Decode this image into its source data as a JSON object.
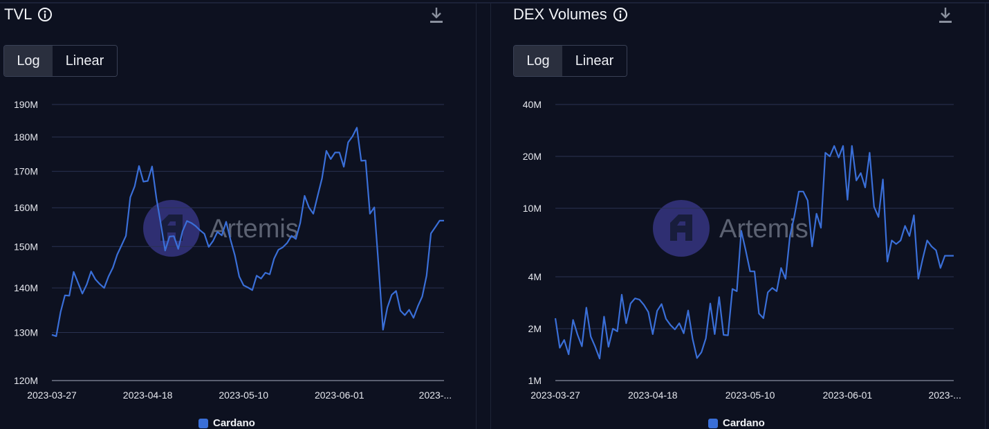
{
  "colors": {
    "background": "#0d1120",
    "series": "#3a6fd8",
    "grid": "#2a3252",
    "watermark": "#3b3a8e"
  },
  "panels": [
    {
      "title": "TVL",
      "info_icon": "info-icon",
      "download_icon": "download-icon",
      "scale_toggle": {
        "options": [
          "Log",
          "Linear"
        ],
        "selected": "Log"
      },
      "legend": {
        "label": "Cardano"
      },
      "watermark": "Artemis"
    },
    {
      "title": "DEX Volumes",
      "info_icon": "info-icon",
      "download_icon": "download-icon",
      "scale_toggle": {
        "options": [
          "Log",
          "Linear"
        ],
        "selected": "Log"
      },
      "legend": {
        "label": "Cardano"
      },
      "watermark": "Artemis"
    }
  ],
  "chart_data": [
    {
      "type": "line",
      "title": "TVL",
      "scale": "log",
      "x_tick_labels": [
        "2023-03-27",
        "2023-04-18",
        "2023-05-10",
        "2023-06-01",
        "2023-..."
      ],
      "x_tick_dates": [
        "2023-03-27",
        "2023-04-18",
        "2023-05-10",
        "2023-06-01",
        "2023-06-23"
      ],
      "x_range": [
        "2023-03-27",
        "2023-06-25"
      ],
      "y_ticks": [
        120000000,
        130000000,
        140000000,
        150000000,
        160000000,
        170000000,
        180000000,
        190000000
      ],
      "y_tick_labels": [
        "120M",
        "130M",
        "140M",
        "150M",
        "160M",
        "170M",
        "180M",
        "190M"
      ],
      "ylim": [
        120000000,
        190000000
      ],
      "grid": true,
      "legend": "bottom-center",
      "series": [
        {
          "name": "Cardano",
          "x": [
            "2023-03-27",
            "2023-03-28",
            "2023-03-29",
            "2023-03-30",
            "2023-03-31",
            "2023-04-01",
            "2023-04-02",
            "2023-04-03",
            "2023-04-04",
            "2023-04-05",
            "2023-04-06",
            "2023-04-07",
            "2023-04-08",
            "2023-04-09",
            "2023-04-10",
            "2023-04-11",
            "2023-04-12",
            "2023-04-13",
            "2023-04-14",
            "2023-04-15",
            "2023-04-16",
            "2023-04-17",
            "2023-04-18",
            "2023-04-19",
            "2023-04-20",
            "2023-04-21",
            "2023-04-22",
            "2023-04-23",
            "2023-04-24",
            "2023-04-25",
            "2023-04-26",
            "2023-04-27",
            "2023-04-28",
            "2023-04-29",
            "2023-04-30",
            "2023-05-01",
            "2023-05-02",
            "2023-05-03",
            "2023-05-04",
            "2023-05-05",
            "2023-05-06",
            "2023-05-07",
            "2023-05-08",
            "2023-05-09",
            "2023-05-10",
            "2023-05-11",
            "2023-05-12",
            "2023-05-13",
            "2023-05-14",
            "2023-05-15",
            "2023-05-16",
            "2023-05-17",
            "2023-05-18",
            "2023-05-19",
            "2023-05-20",
            "2023-05-21",
            "2023-05-22",
            "2023-05-23",
            "2023-05-24",
            "2023-05-25",
            "2023-05-26",
            "2023-05-27",
            "2023-05-28",
            "2023-05-29",
            "2023-05-30",
            "2023-05-31",
            "2023-06-01",
            "2023-06-02",
            "2023-06-03",
            "2023-06-04",
            "2023-06-05",
            "2023-06-06",
            "2023-06-07",
            "2023-06-08",
            "2023-06-09",
            "2023-06-10",
            "2023-06-11",
            "2023-06-12",
            "2023-06-13",
            "2023-06-14",
            "2023-06-15",
            "2023-06-16",
            "2023-06-17",
            "2023-06-18",
            "2023-06-19",
            "2023-06-20",
            "2023-06-21",
            "2023-06-22",
            "2023-06-23",
            "2023-06-24",
            "2023-06-25"
          ],
          "values": [
            129500000,
            129200000,
            134500000,
            138300000,
            138200000,
            143800000,
            141200000,
            138700000,
            140800000,
            143900000,
            142000000,
            140900000,
            140000000,
            142700000,
            144800000,
            148000000,
            150300000,
            152700000,
            162800000,
            165800000,
            171500000,
            167100000,
            167300000,
            171400000,
            162500000,
            155800000,
            149000000,
            152500000,
            152600000,
            149400000,
            153900000,
            156500000,
            156000000,
            155200000,
            154100000,
            153200000,
            149900000,
            151400000,
            153700000,
            152800000,
            156300000,
            151700000,
            147800000,
            142700000,
            140600000,
            140100000,
            139500000,
            142900000,
            142200000,
            143600000,
            143200000,
            147000000,
            149200000,
            149800000,
            150900000,
            152700000,
            151900000,
            156000000,
            163200000,
            160100000,
            158400000,
            163200000,
            168000000,
            175900000,
            173500000,
            175400000,
            175400000,
            171300000,
            178400000,
            180200000,
            182800000,
            173000000,
            173100000,
            158400000,
            160100000,
            145000000,
            130600000,
            135500000,
            138400000,
            139300000,
            134800000,
            133800000,
            135000000,
            133200000,
            135800000,
            138000000,
            142900000,
            153300000,
            154900000,
            156600000,
            156600000
          ]
        }
      ]
    },
    {
      "type": "line",
      "title": "DEX Volumes",
      "scale": "log",
      "x_tick_labels": [
        "2023-03-27",
        "2023-04-18",
        "2023-05-10",
        "2023-06-01",
        "2023-..."
      ],
      "x_tick_dates": [
        "2023-03-27",
        "2023-04-18",
        "2023-05-10",
        "2023-06-01",
        "2023-06-23"
      ],
      "x_range": [
        "2023-03-27",
        "2023-06-25"
      ],
      "y_ticks": [
        1000000,
        2000000,
        4000000,
        10000000,
        20000000,
        40000000
      ],
      "y_tick_labels": [
        "1M",
        "2M",
        "4M",
        "10M",
        "20M",
        "40M"
      ],
      "ylim": [
        1000000,
        40000000
      ],
      "grid": true,
      "legend": "bottom-center",
      "series": [
        {
          "name": "Cardano",
          "x": [
            "2023-03-27",
            "2023-03-28",
            "2023-03-29",
            "2023-03-30",
            "2023-03-31",
            "2023-04-01",
            "2023-04-02",
            "2023-04-03",
            "2023-04-04",
            "2023-04-05",
            "2023-04-06",
            "2023-04-07",
            "2023-04-08",
            "2023-04-09",
            "2023-04-10",
            "2023-04-11",
            "2023-04-12",
            "2023-04-13",
            "2023-04-14",
            "2023-04-15",
            "2023-04-16",
            "2023-04-17",
            "2023-04-18",
            "2023-04-19",
            "2023-04-20",
            "2023-04-21",
            "2023-04-22",
            "2023-04-23",
            "2023-04-24",
            "2023-04-25",
            "2023-04-26",
            "2023-04-27",
            "2023-04-28",
            "2023-04-29",
            "2023-04-30",
            "2023-05-01",
            "2023-05-02",
            "2023-05-03",
            "2023-05-04",
            "2023-05-05",
            "2023-05-06",
            "2023-05-07",
            "2023-05-08",
            "2023-05-09",
            "2023-05-10",
            "2023-05-11",
            "2023-05-12",
            "2023-05-13",
            "2023-05-14",
            "2023-05-15",
            "2023-05-16",
            "2023-05-17",
            "2023-05-18",
            "2023-05-19",
            "2023-05-20",
            "2023-05-21",
            "2023-05-22",
            "2023-05-23",
            "2023-05-24",
            "2023-05-25",
            "2023-05-26",
            "2023-05-27",
            "2023-05-28",
            "2023-05-29",
            "2023-05-30",
            "2023-05-31",
            "2023-06-01",
            "2023-06-02",
            "2023-06-03",
            "2023-06-04",
            "2023-06-05",
            "2023-06-06",
            "2023-06-07",
            "2023-06-08",
            "2023-06-09",
            "2023-06-10",
            "2023-06-11",
            "2023-06-12",
            "2023-06-13",
            "2023-06-14",
            "2023-06-15",
            "2023-06-16",
            "2023-06-17",
            "2023-06-18",
            "2023-06-19",
            "2023-06-20",
            "2023-06-21",
            "2023-06-22",
            "2023-06-23",
            "2023-06-24",
            "2023-06-25"
          ],
          "values": [
            2300000,
            1550000,
            1720000,
            1420000,
            2250000,
            1850000,
            1580000,
            2650000,
            1800000,
            1570000,
            1340000,
            2350000,
            1570000,
            2000000,
            1930000,
            3150000,
            2150000,
            2800000,
            3000000,
            2950000,
            2750000,
            2500000,
            1860000,
            2540000,
            2780000,
            2280000,
            2100000,
            1980000,
            2150000,
            1880000,
            2550000,
            1750000,
            1350000,
            1460000,
            1760000,
            2800000,
            1860000,
            3050000,
            1840000,
            1830000,
            3400000,
            3300000,
            7400000,
            5700000,
            4300000,
            4300000,
            2450000,
            2300000,
            3250000,
            3450000,
            3300000,
            4500000,
            3900000,
            6900000,
            9000000,
            12500000,
            12500000,
            11100000,
            6000000,
            9300000,
            7700000,
            21000000,
            20000000,
            23000000,
            19700000,
            23000000,
            11200000,
            23000000,
            14500000,
            16000000,
            13200000,
            21000000,
            10200000,
            8900000,
            14700000,
            4900000,
            6500000,
            6200000,
            6500000,
            7900000,
            6900000,
            9100000,
            3900000,
            5100000,
            6500000,
            6000000,
            5700000,
            4500000,
            5300000,
            5300000,
            5300000
          ]
        }
      ]
    }
  ]
}
